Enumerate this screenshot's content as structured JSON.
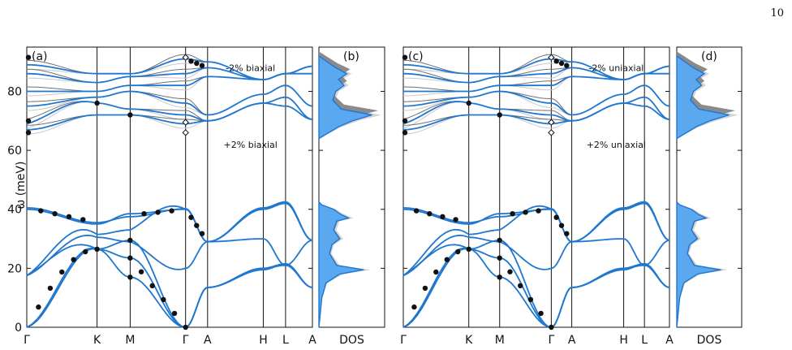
{
  "page_number": "10",
  "colors": {
    "blue": "#1f77d0",
    "dark_gray": "#707070",
    "light_gray": "#c8c8c8",
    "dos_fill_blue": "#5aa9f0",
    "dos_fill_dark": "#8a8a8a",
    "dos_fill_light": "#d4d4d4"
  },
  "y_axis": {
    "label": "ω (meV)",
    "ticks": [
      "0",
      "20",
      "40",
      "60",
      "80"
    ],
    "ylim": [
      0,
      95
    ]
  },
  "chart_data": [
    {
      "type": "line",
      "panel_label": "(a)",
      "kpath_labels": [
        "Γ",
        "K",
        "M",
        "Γ",
        "A",
        "H",
        "L",
        "A"
      ],
      "annotations": [
        "-2% biaxial",
        "+2% biaxial"
      ],
      "series": [
        {
          "name": "-2% biaxial"
        },
        {
          "name": "+2% biaxial"
        }
      ],
      "experimental_points": [
        {
          "x": "Γ-K",
          "y": [
            40.5,
            39.0,
            37.5,
            36.5,
            35.5
          ]
        },
        {
          "x": "K",
          "y": [
            26.5,
            76
          ]
        },
        {
          "x": "M",
          "y": [
            23.5,
            29.5,
            72
          ]
        },
        {
          "x": "Γ",
          "y": [
            0,
            40.2,
            91.5,
            69.5,
            66
          ]
        }
      ]
    },
    {
      "type": "area",
      "panel_label": "(b)",
      "xlabel": "DOS"
    },
    {
      "type": "line",
      "panel_label": "(c)",
      "kpath_labels": [
        "Γ",
        "K",
        "M",
        "Γ",
        "A",
        "H",
        "L",
        "A"
      ],
      "annotations": [
        "-2% uniaxial",
        "+2% uniaxial"
      ],
      "series": [
        {
          "name": "-2% uniaxial"
        },
        {
          "name": "+2% uniaxial"
        }
      ]
    },
    {
      "type": "area",
      "panel_label": "(d)",
      "xlabel": "DOS"
    }
  ]
}
